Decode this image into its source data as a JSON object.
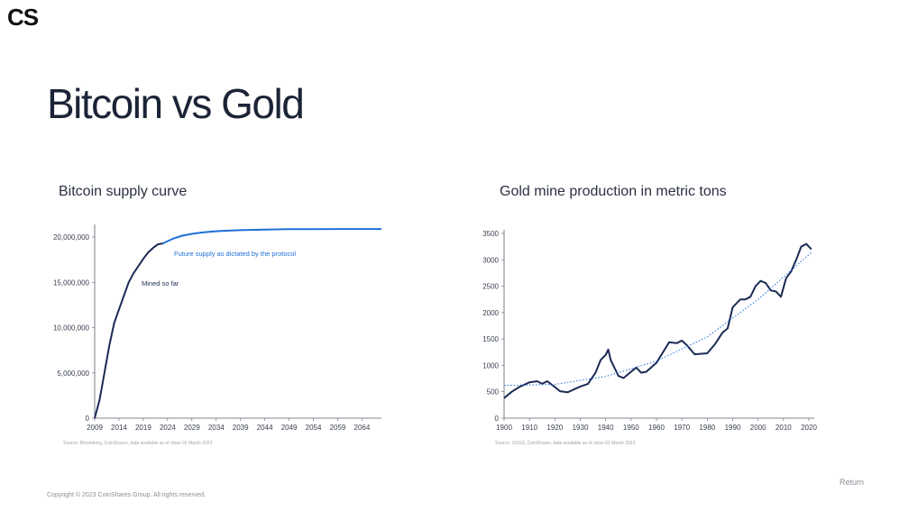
{
  "brand": {
    "logo": "CS"
  },
  "page": {
    "title": "Bitcoin vs Gold"
  },
  "footer": {
    "copyright": "Copyright © 2023 CoinShares Group. All rights reserved.",
    "return_label": "Return"
  },
  "colors": {
    "primary": "#1b2b55",
    "accent": "#1f6fd6",
    "grid": "#cfd3da"
  },
  "chart_data": [
    {
      "type": "line",
      "title": "Bitcoin supply curve",
      "source": "Source: Bloomberg, CoinShares, data available as of close 02 March 2023",
      "xlabel": "",
      "ylabel": "",
      "xlim": [
        2009,
        2068
      ],
      "ylim": [
        0,
        21000000
      ],
      "x_ticks": [
        2009,
        2014,
        2019,
        2024,
        2029,
        2034,
        2039,
        2044,
        2049,
        2054,
        2059,
        2064
      ],
      "y_ticks": [
        0,
        5000000,
        10000000,
        15000000,
        20000000
      ],
      "y_tick_labels": [
        "0",
        "5,000,000",
        "10,000,000",
        "15,000,000",
        "20,000,000"
      ],
      "annotations": [
        {
          "text": "Mined so far",
          "series": 0
        },
        {
          "text": "Future supply as dictated by the protocol",
          "series": 1
        }
      ],
      "series": [
        {
          "name": "Mined so far",
          "color": "#1b2b55",
          "x": [
            2009,
            2010,
            2011,
            2012,
            2013,
            2014,
            2015,
            2016,
            2017,
            2018,
            2019,
            2020,
            2021,
            2022,
            2023
          ],
          "y": [
            0,
            2000000,
            5000000,
            8000000,
            10500000,
            12000000,
            13500000,
            15000000,
            16000000,
            16800000,
            17600000,
            18300000,
            18800000,
            19200000,
            19300000
          ]
        },
        {
          "name": "Future supply as dictated by the protocol",
          "color": "#1f6fd6",
          "x": [
            2023,
            2025,
            2027,
            2029,
            2031,
            2033,
            2035,
            2039,
            2044,
            2049,
            2054,
            2059,
            2064,
            2068
          ],
          "y": [
            19300000,
            19800000,
            20150000,
            20350000,
            20500000,
            20600000,
            20680000,
            20760000,
            20830000,
            20870000,
            20880000,
            20890000,
            20890000,
            20890000
          ]
        }
      ]
    },
    {
      "type": "line",
      "title": "Gold mine production in metric tons",
      "source": "Source: USGS, CoinShares, data available as of close 02 March 2023",
      "xlabel": "",
      "ylabel": "",
      "xlim": [
        1900,
        2020
      ],
      "ylim": [
        0,
        3500
      ],
      "x_ticks": [
        1900,
        1910,
        1920,
        1930,
        1940,
        1950,
        1960,
        1970,
        1980,
        1990,
        2000,
        2010,
        2020
      ],
      "y_ticks": [
        0,
        500,
        1000,
        1500,
        2000,
        2500,
        3000,
        3500
      ],
      "series": [
        {
          "name": "Gold mine production",
          "color": "#1b2b55",
          "x": [
            1900,
            1903,
            1906,
            1910,
            1913,
            1915,
            1917,
            1920,
            1922,
            1925,
            1930,
            1933,
            1936,
            1938,
            1940,
            1941,
            1942,
            1943,
            1945,
            1947,
            1950,
            1952,
            1954,
            1956,
            1960,
            1965,
            1968,
            1970,
            1972,
            1975,
            1980,
            1983,
            1986,
            1988,
            1990,
            1991,
            1993,
            1995,
            1997,
            1999,
            2001,
            2003,
            2005,
            2007,
            2009,
            2011,
            2013,
            2015,
            2017,
            2019,
            2021
          ],
          "y": [
            380,
            500,
            590,
            680,
            700,
            650,
            700,
            590,
            510,
            490,
            600,
            650,
            860,
            1100,
            1200,
            1300,
            1100,
            1000,
            800,
            760,
            880,
            960,
            860,
            880,
            1050,
            1440,
            1420,
            1470,
            1380,
            1210,
            1230,
            1400,
            1620,
            1700,
            2100,
            2150,
            2250,
            2250,
            2300,
            2500,
            2600,
            2560,
            2420,
            2400,
            2300,
            2650,
            2780,
            3000,
            3250,
            3300,
            3200
          ]
        },
        {
          "name": "Trend",
          "color": "#1f6fd6",
          "style": "dotted",
          "x": [
            1900,
            1920,
            1940,
            1960,
            1980,
            2000,
            2021
          ],
          "y": [
            620,
            640,
            790,
            1080,
            1540,
            2250,
            3140
          ]
        }
      ]
    }
  ]
}
